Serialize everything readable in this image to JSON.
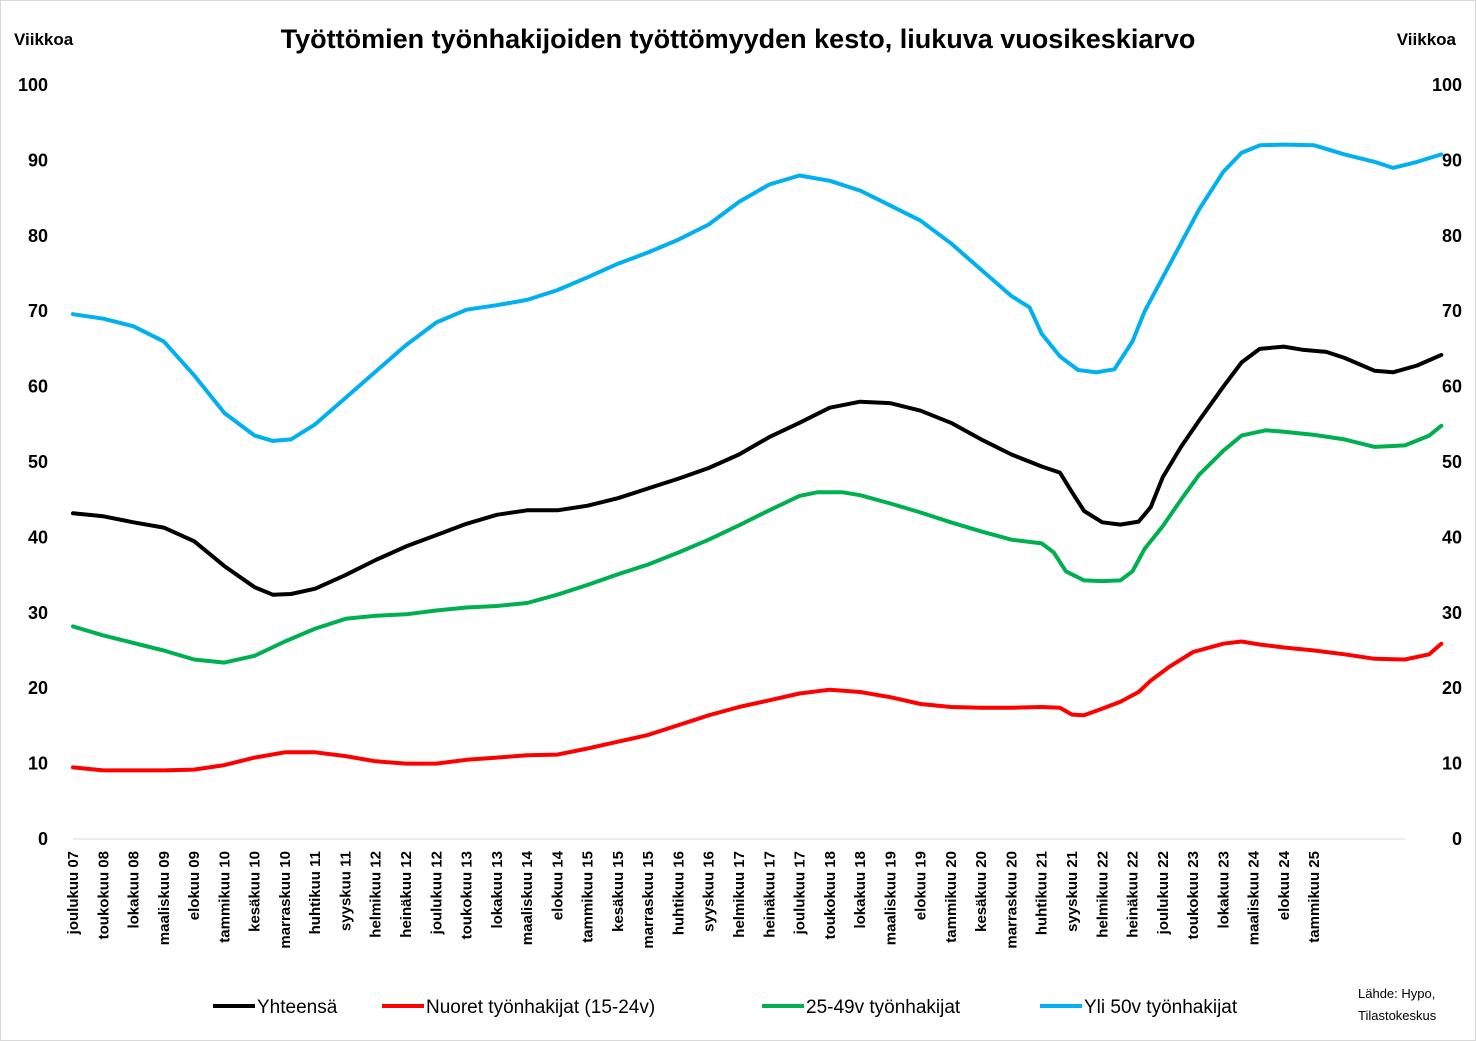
{
  "chart_data": {
    "type": "line",
    "title": "Työttömien työnhakijoiden työttömyyden kesto, liukuva vuosikeskiarvo",
    "ylabel_left": "Viikkoa",
    "ylabel_right": "Viikkoa",
    "ylim": [
      0,
      100
    ],
    "yticks": [
      0,
      10,
      20,
      30,
      40,
      50,
      60,
      70,
      80,
      90,
      100
    ],
    "xlim": [
      0,
      220
    ],
    "grid": false,
    "legend_position": "bottom",
    "x_tick_labels": [
      "joulukuu 07",
      "toukokuu 08",
      "lokakuu 08",
      "maaliskuu 09",
      "elokuu 09",
      "tammikuu 10",
      "kesäkuu 10",
      "marraskuu 10",
      "huhtikuu 11",
      "syyskuu 11",
      "helmikuu 12",
      "heinäkuu 12",
      "joulukuu 12",
      "toukokuu 13",
      "lokakuu 13",
      "maaliskuu 14",
      "elokuu 14",
      "tammikuu 15",
      "kesäkuu 15",
      "marraskuu 15",
      "huhtikuu 16",
      "syyskuu 16",
      "helmikuu 17",
      "heinäkuu 17",
      "joulukuu 17",
      "toukokuu 18",
      "lokakuu 18",
      "maaliskuu 19",
      "elokuu 19",
      "tammikuu 20",
      "kesäkuu 20",
      "marraskuu 20",
      "huhtikuu 21",
      "syyskuu 21",
      "helmikuu 22",
      "heinäkuu 22",
      "joulukuu 22",
      "toukokuu 23",
      "lokakuu 23",
      "maaliskuu 24",
      "elokuu 24",
      "tammikuu 25"
    ],
    "x_tick_step_months": 5,
    "source_note": [
      "Lähde: Hypo,",
      "Tilastokeskus"
    ],
    "series": [
      {
        "name": "Yhteensä",
        "color": "#000000",
        "points": [
          [
            0,
            43.2
          ],
          [
            5,
            42.8
          ],
          [
            10,
            42
          ],
          [
            15,
            41.3
          ],
          [
            20,
            39.5
          ],
          [
            25,
            36.2
          ],
          [
            30,
            33.4
          ],
          [
            33,
            32.4
          ],
          [
            36,
            32.5
          ],
          [
            40,
            33.2
          ],
          [
            45,
            35
          ],
          [
            50,
            37
          ],
          [
            55,
            38.8
          ],
          [
            60,
            40.3
          ],
          [
            65,
            41.8
          ],
          [
            70,
            43
          ],
          [
            75,
            43.6
          ],
          [
            80,
            43.6
          ],
          [
            85,
            44.2
          ],
          [
            90,
            45.2
          ],
          [
            95,
            46.5
          ],
          [
            100,
            47.8
          ],
          [
            105,
            49.2
          ],
          [
            110,
            51
          ],
          [
            115,
            53.3
          ],
          [
            120,
            55.2
          ],
          [
            125,
            57.2
          ],
          [
            130,
            58
          ],
          [
            135,
            57.8
          ],
          [
            140,
            56.8
          ],
          [
            145,
            55.2
          ],
          [
            150,
            53
          ],
          [
            155,
            51
          ],
          [
            160,
            49.4
          ],
          [
            163,
            48.6
          ],
          [
            165,
            46
          ],
          [
            167,
            43.5
          ],
          [
            170,
            42
          ],
          [
            173,
            41.7
          ],
          [
            176,
            42.1
          ],
          [
            178,
            44
          ],
          [
            180,
            48
          ],
          [
            183,
            52
          ],
          [
            186,
            55.5
          ],
          [
            190,
            60
          ],
          [
            193,
            63.2
          ],
          [
            196,
            65
          ],
          [
            200,
            65.3
          ],
          [
            203,
            64.9
          ],
          [
            207,
            64.6
          ],
          [
            210,
            63.8
          ],
          [
            215,
            62.1
          ],
          [
            218,
            61.9
          ],
          [
            222,
            62.8
          ],
          [
            226,
            64.2
          ]
        ]
      },
      {
        "name": "Nuoret työnhakijat (15-24v)",
        "color": "#ff0000",
        "points": [
          [
            0,
            9.5
          ],
          [
            5,
            9.1
          ],
          [
            10,
            9.1
          ],
          [
            15,
            9.1
          ],
          [
            20,
            9.2
          ],
          [
            25,
            9.8
          ],
          [
            30,
            10.8
          ],
          [
            35,
            11.5
          ],
          [
            40,
            11.5
          ],
          [
            45,
            11
          ],
          [
            50,
            10.3
          ],
          [
            55,
            10
          ],
          [
            60,
            10
          ],
          [
            65,
            10.5
          ],
          [
            70,
            10.8
          ],
          [
            75,
            11.1
          ],
          [
            80,
            11.2
          ],
          [
            85,
            12
          ],
          [
            90,
            12.9
          ],
          [
            95,
            13.8
          ],
          [
            100,
            15.1
          ],
          [
            105,
            16.4
          ],
          [
            110,
            17.5
          ],
          [
            115,
            18.4
          ],
          [
            120,
            19.3
          ],
          [
            125,
            19.8
          ],
          [
            130,
            19.5
          ],
          [
            135,
            18.8
          ],
          [
            140,
            17.9
          ],
          [
            145,
            17.5
          ],
          [
            150,
            17.4
          ],
          [
            155,
            17.4
          ],
          [
            160,
            17.5
          ],
          [
            163,
            17.4
          ],
          [
            165,
            16.5
          ],
          [
            167,
            16.4
          ],
          [
            170,
            17.3
          ],
          [
            173,
            18.2
          ],
          [
            176,
            19.5
          ],
          [
            178,
            21
          ],
          [
            181,
            22.8
          ],
          [
            185,
            24.8
          ],
          [
            190,
            25.9
          ],
          [
            193,
            26.2
          ],
          [
            196,
            25.8
          ],
          [
            200,
            25.4
          ],
          [
            205,
            25
          ],
          [
            210,
            24.5
          ],
          [
            215,
            23.9
          ],
          [
            220,
            23.8
          ],
          [
            224,
            24.5
          ],
          [
            226,
            25.9
          ]
        ]
      },
      {
        "name": "25-49v työnhakijat",
        "color": "#00b050",
        "points": [
          [
            0,
            28.2
          ],
          [
            5,
            27
          ],
          [
            10,
            26
          ],
          [
            15,
            25
          ],
          [
            20,
            23.8
          ],
          [
            25,
            23.4
          ],
          [
            30,
            24.3
          ],
          [
            35,
            26.2
          ],
          [
            40,
            27.9
          ],
          [
            45,
            29.2
          ],
          [
            50,
            29.6
          ],
          [
            55,
            29.8
          ],
          [
            60,
            30.3
          ],
          [
            65,
            30.7
          ],
          [
            70,
            30.9
          ],
          [
            75,
            31.3
          ],
          [
            80,
            32.4
          ],
          [
            85,
            33.7
          ],
          [
            90,
            35.1
          ],
          [
            95,
            36.4
          ],
          [
            100,
            38
          ],
          [
            105,
            39.7
          ],
          [
            110,
            41.6
          ],
          [
            115,
            43.6
          ],
          [
            120,
            45.5
          ],
          [
            123,
            46
          ],
          [
            127,
            46
          ],
          [
            130,
            45.6
          ],
          [
            135,
            44.5
          ],
          [
            140,
            43.3
          ],
          [
            145,
            42
          ],
          [
            150,
            40.8
          ],
          [
            155,
            39.7
          ],
          [
            160,
            39.2
          ],
          [
            162,
            38
          ],
          [
            164,
            35.5
          ],
          [
            167,
            34.3
          ],
          [
            170,
            34.2
          ],
          [
            173,
            34.3
          ],
          [
            175,
            35.5
          ],
          [
            177,
            38.5
          ],
          [
            180,
            41.5
          ],
          [
            183,
            45
          ],
          [
            186,
            48.3
          ],
          [
            190,
            51.5
          ],
          [
            193,
            53.5
          ],
          [
            197,
            54.2
          ],
          [
            200,
            54
          ],
          [
            205,
            53.6
          ],
          [
            210,
            53
          ],
          [
            215,
            52
          ],
          [
            220,
            52.2
          ],
          [
            224,
            53.5
          ],
          [
            226,
            54.8
          ]
        ]
      },
      {
        "name": "Yli 50v työnhakijat",
        "color": "#00b0f0",
        "points": [
          [
            0,
            69.6
          ],
          [
            5,
            69
          ],
          [
            10,
            68
          ],
          [
            15,
            66
          ],
          [
            20,
            61.5
          ],
          [
            25,
            56.5
          ],
          [
            30,
            53.5
          ],
          [
            33,
            52.8
          ],
          [
            36,
            53
          ],
          [
            40,
            55
          ],
          [
            45,
            58.5
          ],
          [
            50,
            62
          ],
          [
            55,
            65.5
          ],
          [
            60,
            68.5
          ],
          [
            65,
            70.2
          ],
          [
            70,
            70.8
          ],
          [
            75,
            71.5
          ],
          [
            80,
            72.8
          ],
          [
            85,
            74.5
          ],
          [
            90,
            76.3
          ],
          [
            95,
            77.8
          ],
          [
            100,
            79.5
          ],
          [
            105,
            81.5
          ],
          [
            110,
            84.5
          ],
          [
            115,
            86.8
          ],
          [
            120,
            88
          ],
          [
            125,
            87.3
          ],
          [
            130,
            86
          ],
          [
            135,
            84
          ],
          [
            140,
            82
          ],
          [
            145,
            79
          ],
          [
            150,
            75.5
          ],
          [
            155,
            72
          ],
          [
            158,
            70.5
          ],
          [
            160,
            67
          ],
          [
            163,
            64
          ],
          [
            166,
            62.2
          ],
          [
            169,
            61.9
          ],
          [
            172,
            62.3
          ],
          [
            175,
            66
          ],
          [
            177,
            70
          ],
          [
            180,
            74.5
          ],
          [
            183,
            79
          ],
          [
            186,
            83.5
          ],
          [
            190,
            88.5
          ],
          [
            193,
            91
          ],
          [
            196,
            92
          ],
          [
            200,
            92.1
          ],
          [
            205,
            92
          ],
          [
            210,
            90.8
          ],
          [
            215,
            89.8
          ],
          [
            218,
            89
          ],
          [
            222,
            89.8
          ],
          [
            226,
            90.8
          ]
        ]
      }
    ]
  }
}
